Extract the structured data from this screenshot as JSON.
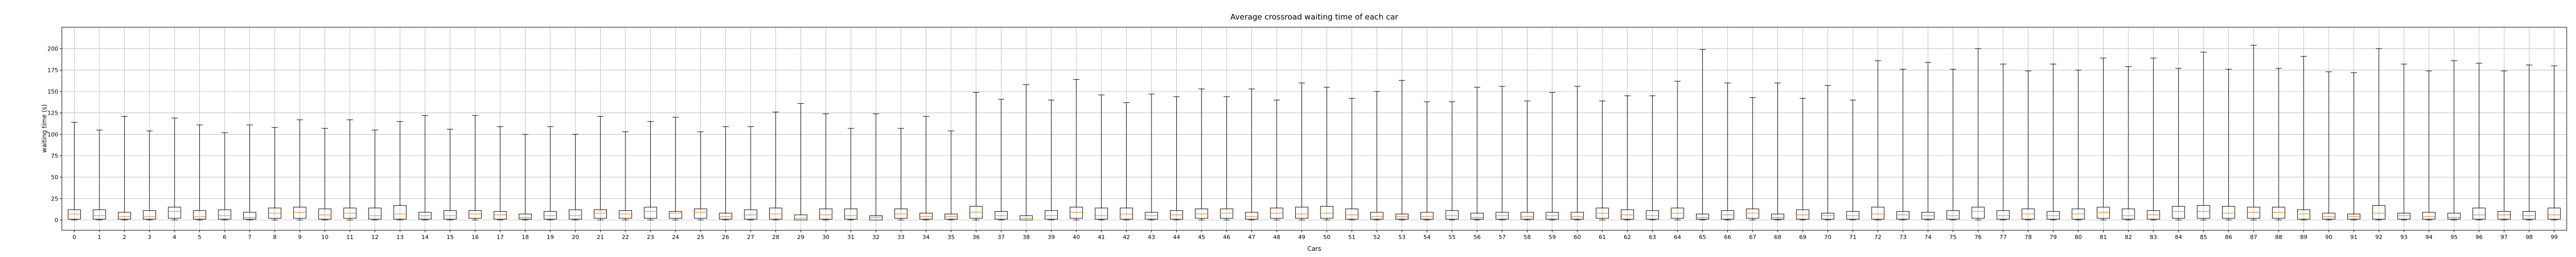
{
  "chart_data": {
    "type": "box",
    "title": "Average crossroad waiting time of each car",
    "xlabel": "Cars",
    "ylabel": "waiting time (s)",
    "ylim": [
      -12,
      225
    ],
    "yticks": [
      0,
      25,
      50,
      75,
      100,
      125,
      150,
      175,
      200
    ],
    "grid": true,
    "colors": {
      "box": "#000000",
      "median": "#ff7f0e",
      "grid": "#b0b0b0"
    },
    "categories": [
      "0",
      "1",
      "2",
      "3",
      "4",
      "5",
      "6",
      "7",
      "8",
      "9",
      "10",
      "11",
      "12",
      "13",
      "14",
      "15",
      "16",
      "17",
      "18",
      "19",
      "20",
      "21",
      "22",
      "23",
      "24",
      "25",
      "26",
      "27",
      "28",
      "29",
      "30",
      "31",
      "32",
      "33",
      "34",
      "35",
      "36",
      "37",
      "38",
      "39",
      "40",
      "41",
      "42",
      "43",
      "44",
      "45",
      "46",
      "47",
      "48",
      "49",
      "50",
      "51",
      "52",
      "53",
      "54",
      "55",
      "56",
      "57",
      "58",
      "59",
      "60",
      "61",
      "62",
      "63",
      "64",
      "65",
      "66",
      "67",
      "68",
      "69",
      "70",
      "71",
      "72",
      "73",
      "74",
      "75",
      "76",
      "77",
      "78",
      "79",
      "80",
      "81",
      "82",
      "83",
      "84",
      "85",
      "86",
      "87",
      "88",
      "89",
      "90",
      "91",
      "92",
      "93",
      "94",
      "95",
      "96",
      "97",
      "98",
      "99"
    ],
    "whisker_high": [
      114,
      105,
      121,
      104,
      119,
      111,
      102,
      111,
      108,
      117,
      107,
      117,
      105,
      115,
      122,
      106,
      122,
      109,
      100,
      109,
      100,
      121,
      103,
      115,
      120,
      103,
      109,
      109,
      126,
      136,
      124,
      107,
      124,
      107,
      121,
      104,
      149,
      141,
      158,
      140,
      164,
      146,
      137,
      147,
      144,
      153,
      144,
      153,
      140,
      160,
      155,
      142,
      150,
      163,
      138,
      138,
      155,
      156,
      139,
      149,
      156,
      139,
      145,
      145,
      162,
      199,
      160,
      143,
      160,
      142,
      157,
      140,
      186,
      176,
      184,
      176,
      200,
      182,
      174,
      182,
      175,
      189,
      179,
      189,
      177,
      196,
      176,
      204,
      177,
      191,
      173,
      172,
      200,
      182,
      174,
      186,
      183,
      174,
      181,
      180
    ],
    "q3": [
      12,
      12,
      9,
      11,
      15,
      11,
      12,
      9,
      14,
      15,
      13,
      14,
      14,
      17,
      9,
      11,
      11,
      10,
      7,
      10,
      12,
      12,
      11,
      15,
      10,
      13,
      8,
      12,
      14,
      6,
      13,
      13,
      5,
      13,
      8,
      7,
      16,
      10,
      5,
      11,
      15,
      14,
      14,
      9,
      11,
      13,
      13,
      9,
      14,
      15,
      16,
      13,
      9,
      7,
      9,
      11,
      8,
      9,
      9,
      9,
      9,
      14,
      12,
      11,
      14,
      7,
      11,
      13,
      7,
      12,
      8,
      10,
      15,
      10,
      9,
      11,
      15,
      11,
      13,
      10,
      13,
      15,
      13,
      11,
      16,
      17,
      16,
      15,
      15,
      12,
      8,
      7,
      17,
      8,
      9,
      8,
      14,
      10,
      10,
      14
    ],
    "median": [
      7,
      5,
      4,
      4,
      10,
      4,
      5,
      3,
      8,
      9,
      6,
      8,
      5,
      7,
      5,
      5,
      7,
      6,
      3,
      5,
      5,
      8,
      7,
      10,
      8,
      9,
      4,
      6,
      7,
      2,
      6,
      5,
      3,
      7,
      4,
      4,
      9,
      5,
      2,
      5,
      9,
      5,
      7,
      5,
      6,
      7,
      8,
      4,
      8,
      7,
      8,
      6,
      4,
      4,
      4,
      5,
      3,
      5,
      4,
      5,
      4,
      8,
      6,
      5,
      8,
      3,
      6,
      8,
      3,
      6,
      5,
      5,
      7,
      6,
      5,
      5,
      10,
      5,
      7,
      5,
      7,
      9,
      5,
      6,
      10,
      10,
      8,
      9,
      9,
      7,
      4,
      4,
      8,
      5,
      4,
      3,
      6,
      6,
      5,
      6
    ],
    "q1": [
      1,
      1,
      1,
      1,
      2,
      1,
      1,
      1,
      2,
      2,
      1,
      2,
      1,
      1,
      1,
      1,
      2,
      1,
      1,
      1,
      1,
      2,
      2,
      2,
      2,
      2,
      1,
      1,
      1,
      0,
      1,
      1,
      0,
      2,
      1,
      1,
      2,
      1,
      0,
      1,
      2,
      1,
      1,
      1,
      1,
      2,
      2,
      1,
      2,
      2,
      2,
      1,
      1,
      1,
      1,
      1,
      1,
      1,
      1,
      1,
      1,
      2,
      1,
      1,
      2,
      1,
      1,
      2,
      1,
      1,
      1,
      1,
      1,
      1,
      1,
      1,
      2,
      1,
      1,
      1,
      1,
      2,
      1,
      1,
      2,
      2,
      2,
      2,
      2,
      1,
      1,
      1,
      1,
      1,
      1,
      1,
      1,
      1,
      1,
      1
    ],
    "whisker_low": [
      0,
      0,
      0,
      0,
      0,
      0,
      0,
      0,
      0,
      0,
      0,
      0,
      0,
      0,
      0,
      0,
      0,
      0,
      0,
      0,
      0,
      0,
      0,
      0,
      0,
      0,
      0,
      0,
      0,
      0,
      0,
      0,
      0,
      0,
      0,
      0,
      0,
      0,
      0,
      0,
      0,
      0,
      0,
      0,
      0,
      0,
      0,
      0,
      0,
      0,
      0,
      0,
      0,
      0,
      0,
      0,
      0,
      0,
      0,
      0,
      0,
      0,
      0,
      0,
      0,
      0,
      0,
      0,
      0,
      0,
      0,
      0,
      0,
      0,
      0,
      0,
      0,
      0,
      0,
      0,
      0,
      0,
      0,
      0,
      0,
      0,
      0,
      0,
      0,
      0,
      0,
      0,
      0,
      0,
      0,
      0,
      0,
      0,
      0,
      0
    ]
  }
}
